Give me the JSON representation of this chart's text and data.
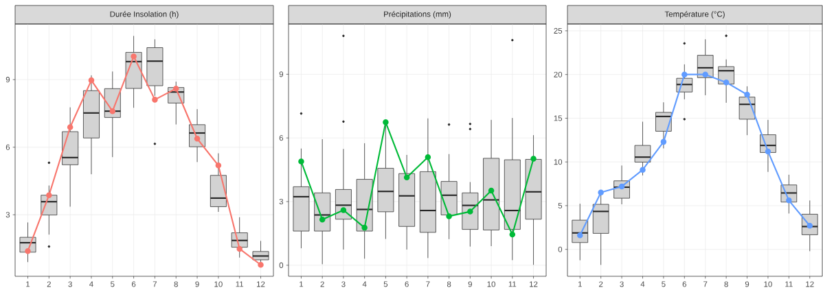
{
  "chart_data": [
    {
      "type": "box",
      "title": "Durée Insolation (h)",
      "categories": [
        "1",
        "2",
        "3",
        "4",
        "5",
        "6",
        "7",
        "8",
        "9",
        "10",
        "11",
        "12"
      ],
      "ylim": [
        0.27,
        11.47
      ],
      "yticks": [
        3,
        6,
        9
      ],
      "grid": true,
      "series": [
        {
          "type": "box",
          "color": "#d3d3d3",
          "boxes": [
            {
              "low": 0.9,
              "q1": 1.34,
              "median": 1.76,
              "q3": 2.0,
              "high": 2.66
            },
            {
              "low": 2.12,
              "q1": 2.99,
              "median": 3.58,
              "q3": 3.87,
              "high": 4.3,
              "outliers": [
                5.31,
                1.59
              ]
            },
            {
              "low": 3.36,
              "q1": 5.22,
              "median": 5.54,
              "q3": 6.69,
              "high": 7.77
            },
            {
              "low": 4.8,
              "q1": 6.41,
              "median": 7.52,
              "q3": 8.51,
              "high": 9.19
            },
            {
              "low": 5.56,
              "q1": 7.32,
              "median": 7.6,
              "q3": 8.6,
              "high": 9.36
            },
            {
              "low": 7.75,
              "q1": 8.61,
              "median": 9.8,
              "q3": 10.21,
              "high": 10.94
            },
            {
              "low": 8.28,
              "q1": 8.73,
              "median": 9.82,
              "q3": 10.42,
              "high": 10.79,
              "outliers": [
                6.15
              ]
            },
            {
              "low": 7.01,
              "q1": 7.96,
              "median": 8.45,
              "q3": 8.65,
              "high": 8.91
            },
            {
              "low": 5.34,
              "q1": 6.02,
              "median": 6.63,
              "q3": 7.0,
              "high": 7.69
            },
            {
              "low": 3.13,
              "q1": 3.36,
              "median": 3.74,
              "q3": 4.75,
              "high": 5.73
            },
            {
              "low": 1.1,
              "q1": 1.56,
              "median": 1.86,
              "q3": 2.2,
              "high": 2.89
            },
            {
              "low": 0.88,
              "q1": 1.0,
              "median": 1.17,
              "q3": 1.37,
              "high": 1.84
            }
          ]
        },
        {
          "type": "line",
          "color": "#f8766d",
          "marker": "circle",
          "values": [
            1.39,
            3.87,
            6.89,
            8.97,
            7.6,
            10.03,
            8.11,
            8.6,
            6.38,
            5.19,
            1.49,
            0.78
          ]
        }
      ]
    },
    {
      "type": "box",
      "title": "Précipitations (mm)",
      "categories": [
        "1",
        "2",
        "3",
        "4",
        "5",
        "6",
        "7",
        "8",
        "9",
        "10",
        "11",
        "12"
      ],
      "ylim": [
        -0.52,
        11.37
      ],
      "yticks": [
        0,
        3,
        6,
        9
      ],
      "grid": true,
      "series": [
        {
          "type": "box",
          "color": "#d3d3d3",
          "boxes": [
            {
              "low": 0.8,
              "q1": 1.61,
              "median": 3.23,
              "q3": 3.7,
              "high": 5.5,
              "outliers": [
                7.15
              ]
            },
            {
              "low": 0.05,
              "q1": 1.61,
              "median": 2.37,
              "q3": 3.41,
              "high": 5.94
            },
            {
              "low": 0.74,
              "q1": 2.17,
              "median": 2.83,
              "q3": 3.57,
              "high": 5.48,
              "outliers": [
                6.77,
                10.81
              ]
            },
            {
              "low": 0.31,
              "q1": 1.61,
              "median": 2.63,
              "q3": 4.05,
              "high": 5.75
            },
            {
              "low": 1.24,
              "q1": 2.52,
              "median": 3.48,
              "q3": 4.57,
              "high": 6.63
            },
            {
              "low": 0.74,
              "q1": 1.83,
              "median": 3.27,
              "q3": 4.32,
              "high": 5.2
            },
            {
              "low": 0.34,
              "q1": 1.55,
              "median": 2.58,
              "q3": 4.41,
              "high": 6.92
            },
            {
              "low": 1.23,
              "q1": 2.37,
              "median": 3.3,
              "q3": 3.95,
              "high": 5.24,
              "outliers": [
                6.63
              ]
            },
            {
              "low": 0.88,
              "q1": 1.69,
              "median": 2.82,
              "q3": 3.41,
              "high": 3.92,
              "outliers": [
                6.66,
                6.42
              ]
            },
            {
              "low": 0.9,
              "q1": 1.66,
              "median": 3.08,
              "q3": 5.04,
              "high": 6.85
            },
            {
              "low": 0.24,
              "q1": 1.69,
              "median": 2.58,
              "q3": 4.97,
              "high": 6.94,
              "outliers": [
                10.61
              ]
            },
            {
              "low": 0.02,
              "q1": 2.17,
              "median": 3.46,
              "q3": 4.99,
              "high": 6.13
            }
          ]
        },
        {
          "type": "line",
          "color": "#00ba38",
          "marker": "circle",
          "values": [
            4.89,
            2.15,
            2.6,
            1.77,
            6.74,
            4.14,
            5.09,
            2.31,
            2.53,
            3.52,
            1.45,
            5.02
          ]
        }
      ]
    },
    {
      "type": "box",
      "title": "Température (°C)",
      "categories": [
        "1",
        "2",
        "3",
        "4",
        "5",
        "6",
        "7",
        "8",
        "9",
        "10",
        "11",
        "12"
      ],
      "ylim": [
        -3.08,
        25.78
      ],
      "yticks": [
        0,
        5,
        10,
        15,
        20,
        25
      ],
      "grid": true,
      "series": [
        {
          "type": "box",
          "color": "#d3d3d3",
          "boxes": [
            {
              "low": -1.25,
              "q1": 0.78,
              "median": 1.88,
              "q3": 3.34,
              "high": 5.22
            },
            {
              "low": -1.78,
              "q1": 1.83,
              "median": 4.34,
              "q3": 5.15,
              "high": 6.3
            },
            {
              "low": 5.15,
              "q1": 5.85,
              "median": 7.11,
              "q3": 7.84,
              "high": 9.59
            },
            {
              "low": 8.46,
              "q1": 9.98,
              "median": 10.55,
              "q3": 11.89,
              "high": 14.6
            },
            {
              "low": 11.55,
              "q1": 13.51,
              "median": 15.2,
              "q3": 15.67,
              "high": 16.82
            },
            {
              "low": 17.16,
              "q1": 18.0,
              "median": 18.86,
              "q3": 19.57,
              "high": 21.16,
              "outliers": [
                23.56,
                14.89
              ]
            },
            {
              "low": 17.63,
              "q1": 19.64,
              "median": 20.77,
              "q3": 22.2,
              "high": 24.03
            },
            {
              "low": 16.77,
              "q1": 18.91,
              "median": 20.43,
              "q3": 20.9,
              "high": 21.73,
              "outliers": [
                24.43
              ]
            },
            {
              "low": 13.06,
              "q1": 14.89,
              "median": 16.59,
              "q3": 17.42,
              "high": 18.65
            },
            {
              "low": 8.86,
              "q1": 11.08,
              "median": 11.89,
              "q3": 13.11,
              "high": 14.81
            },
            {
              "low": 4.1,
              "q1": 5.41,
              "median": 6.45,
              "q3": 7.37,
              "high": 8.54
            },
            {
              "low": -0.21,
              "q1": 1.67,
              "median": 2.61,
              "q3": 4.02,
              "high": 5.59
            }
          ]
        },
        {
          "type": "line",
          "color": "#619cff",
          "marker": "circle",
          "values": [
            1.6,
            6.5,
            7.2,
            9.1,
            12.3,
            20.0,
            20.0,
            19.1,
            17.7,
            11.2,
            5.6,
            2.7
          ]
        }
      ]
    }
  ]
}
